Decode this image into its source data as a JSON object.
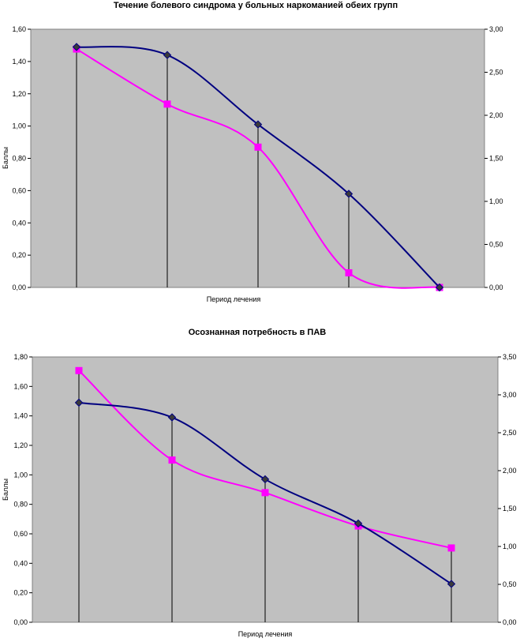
{
  "chart_data": [
    {
      "type": "line",
      "title": "Течение болевого синдрома у больных наркоманией обеих групп",
      "xlabel": "Период лечения",
      "ylabel": "Баллы",
      "ylim": [
        0,
        1.6
      ],
      "y_ticks": [
        "0,00",
        "0,20",
        "0,40",
        "0,60",
        "0,80",
        "1,00",
        "1,20",
        "1,40",
        "1,60"
      ],
      "y2lim": [
        0,
        3.0
      ],
      "y2_ticks": [
        "0,00",
        "0,50",
        "1,00",
        "1,50",
        "2,00",
        "2,50",
        "3,00"
      ],
      "points": 5,
      "grid": false,
      "drop_lines": true,
      "background": "#c0c0c0",
      "series": [
        {
          "axis": "left",
          "color": "#000080",
          "marker": "diamond",
          "values": [
            1.49,
            1.44,
            1.01,
            0.58,
            0.0
          ]
        },
        {
          "axis": "right",
          "color": "#ff00ff",
          "marker": "square",
          "values": [
            2.77,
            2.13,
            1.63,
            0.17,
            0.0
          ]
        }
      ]
    },
    {
      "type": "line",
      "title": "Осознанная потребность в ПАВ",
      "xlabel": "Период лечения",
      "ylabel": "Баллы",
      "ylim": [
        0,
        1.8
      ],
      "y_ticks": [
        "0,00",
        "0,20",
        "0,40",
        "0,60",
        "0,80",
        "1,00",
        "1,20",
        "1,40",
        "1,60",
        "1,80"
      ],
      "y2lim": [
        0,
        3.5
      ],
      "y2_ticks": [
        "0,00",
        "0,50",
        "1,00",
        "1,50",
        "2,00",
        "2,50",
        "3,00",
        "3,50"
      ],
      "points": 5,
      "grid": false,
      "drop_lines": true,
      "background": "#c0c0c0",
      "series": [
        {
          "axis": "left",
          "color": "#000080",
          "marker": "diamond",
          "values": [
            1.49,
            1.39,
            0.97,
            0.67,
            0.26
          ]
        },
        {
          "axis": "right",
          "color": "#ff00ff",
          "marker": "square",
          "values": [
            3.32,
            2.14,
            1.71,
            1.27,
            0.98
          ]
        }
      ]
    }
  ]
}
